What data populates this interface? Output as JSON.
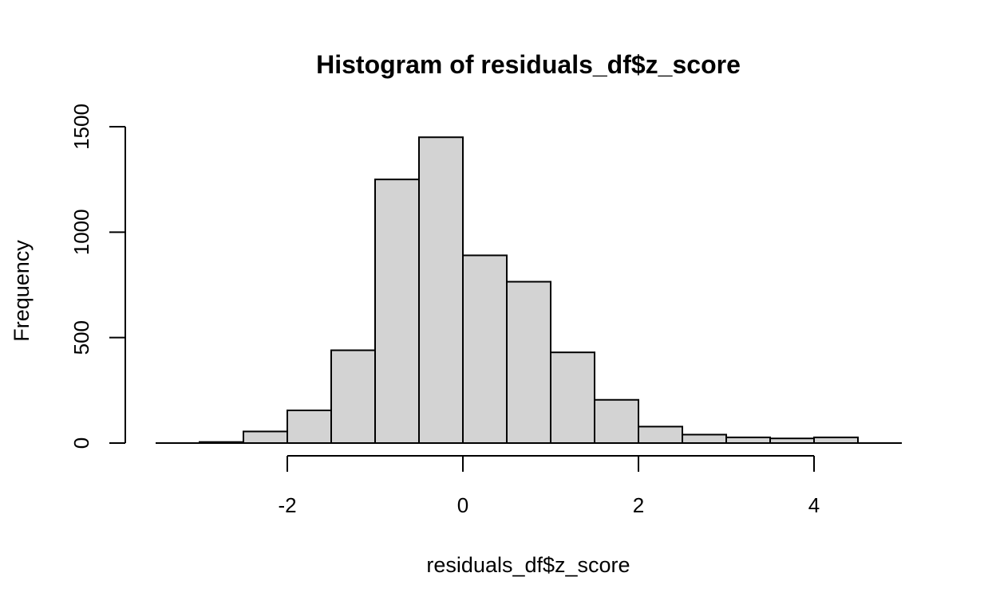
{
  "chart_data": {
    "type": "bar",
    "title": "Histogram of residuals_df$z_score",
    "xlabel": "residuals_df$z_score",
    "ylabel": "Frequency",
    "bin_edges": [
      -3.0,
      -2.5,
      -2.0,
      -1.5,
      -1.0,
      -0.5,
      0.0,
      0.5,
      1.0,
      1.5,
      2.0,
      2.5,
      3.0,
      3.5,
      4.0,
      4.5
    ],
    "values": [
      5,
      55,
      155,
      440,
      1250,
      1450,
      890,
      765,
      430,
      205,
      78,
      40,
      27,
      22,
      27
    ],
    "xlim": [
      -3.5,
      5.0
    ],
    "ylim": [
      0,
      1500
    ],
    "x_ticks": [
      -2,
      0,
      2,
      4
    ],
    "x_tick_labels": [
      "-2",
      "0",
      "2",
      "4"
    ],
    "y_ticks": [
      0,
      500,
      1000,
      1500
    ],
    "y_tick_labels": [
      "0",
      "500",
      "1000",
      "1500"
    ],
    "bar_fill": "#d3d3d3",
    "bar_stroke": "#000000",
    "grid": false,
    "legend": "none"
  }
}
